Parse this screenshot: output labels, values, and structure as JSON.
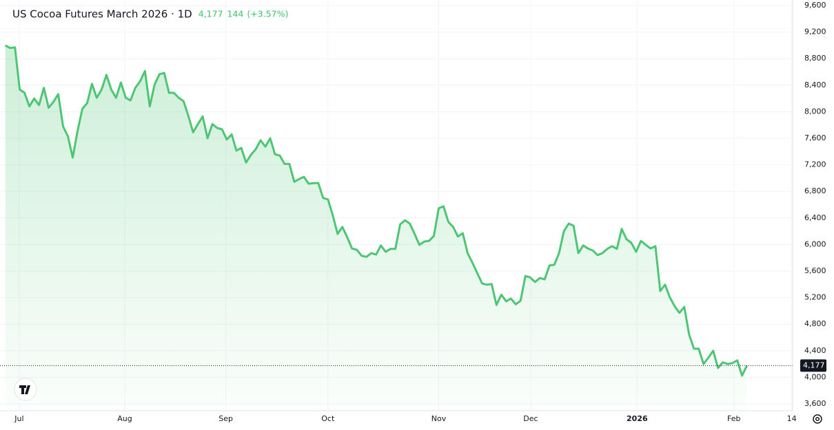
{
  "chart_data": {
    "type": "line",
    "title": "US Cocoa Futures March 2026 · 1D",
    "last": "4,177",
    "change": "144",
    "change_pct": "(+3.57%)",
    "color": "#4cc672",
    "grid": true,
    "values": [
      9000,
      8960,
      8970,
      8335,
      8285,
      8080,
      8200,
      8100,
      8360,
      8060,
      8150,
      8265,
      7780,
      7630,
      7310,
      7710,
      8045,
      8130,
      8420,
      8210,
      8335,
      8555,
      8335,
      8210,
      8440,
      8210,
      8170,
      8360,
      8460,
      8615,
      8080,
      8410,
      8565,
      8585,
      8285,
      8285,
      8210,
      8160,
      7940,
      7690,
      7815,
      7930,
      7600,
      7815,
      7755,
      7735,
      7580,
      7660,
      7415,
      7455,
      7235,
      7350,
      7435,
      7570,
      7475,
      7600,
      7360,
      7340,
      7215,
      7215,
      6945,
      6985,
      7020,
      6915,
      6925,
      6925,
      6700,
      6680,
      6440,
      6160,
      6265,
      6110,
      5940,
      5920,
      5830,
      5815,
      5870,
      5850,
      5985,
      5890,
      5935,
      5935,
      6305,
      6365,
      6315,
      6160,
      5995,
      6045,
      6055,
      6130,
      6545,
      6575,
      6340,
      6265,
      6120,
      6170,
      5870,
      5725,
      5570,
      5415,
      5395,
      5405,
      5090,
      5245,
      5145,
      5185,
      5100,
      5155,
      5525,
      5505,
      5435,
      5495,
      5475,
      5685,
      5695,
      5870,
      6200,
      6315,
      6285,
      5870,
      5985,
      5940,
      5910,
      5840,
      5870,
      5935,
      5975,
      5935,
      6235,
      6080,
      6025,
      5890,
      6055,
      5995,
      5940,
      5975,
      5300,
      5395,
      5205,
      5070,
      4970,
      5060,
      4645,
      4430,
      4430,
      4200,
      4295,
      4400,
      4140,
      4225,
      4200,
      4215,
      4255,
      4025,
      4177
    ],
    "xlim": [
      -1.1,
      163.5
    ],
    "xticks": [
      {
        "value": 2.9,
        "label": "Jul"
      },
      {
        "value": 24.8,
        "label": "Aug"
      },
      {
        "value": 45.8,
        "label": "Sep"
      },
      {
        "value": 67.0,
        "label": "Oct"
      },
      {
        "value": 90.0,
        "label": "Nov"
      },
      {
        "value": 109.1,
        "label": "Dec"
      },
      {
        "value": 131.2,
        "label": "2026"
      },
      {
        "value": 151.3,
        "label": "Feb"
      },
      {
        "value": 163.3,
        "label": "14"
      }
    ],
    "ylim": [
      3600,
      9600
    ],
    "yticks": [
      {
        "value": 3600,
        "label": "3,600"
      },
      {
        "value": 4000,
        "label": "4,000"
      },
      {
        "value": 4400,
        "label": "4,400"
      },
      {
        "value": 4800,
        "label": "4,800"
      },
      {
        "value": 5200,
        "label": "5,200"
      },
      {
        "value": 5600,
        "label": "5,600"
      },
      {
        "value": 6000,
        "label": "6,000"
      },
      {
        "value": 6400,
        "label": "6,400"
      },
      {
        "value": 6800,
        "label": "6,800"
      },
      {
        "value": 7200,
        "label": "7,200"
      },
      {
        "value": 7600,
        "label": "7,600"
      },
      {
        "value": 8000,
        "label": "8,000"
      },
      {
        "value": 8400,
        "label": "8,400"
      },
      {
        "value": 8800,
        "label": "8,800"
      },
      {
        "value": 9200,
        "label": "9,200"
      },
      {
        "value": 9600,
        "label": "9,600"
      }
    ]
  }
}
